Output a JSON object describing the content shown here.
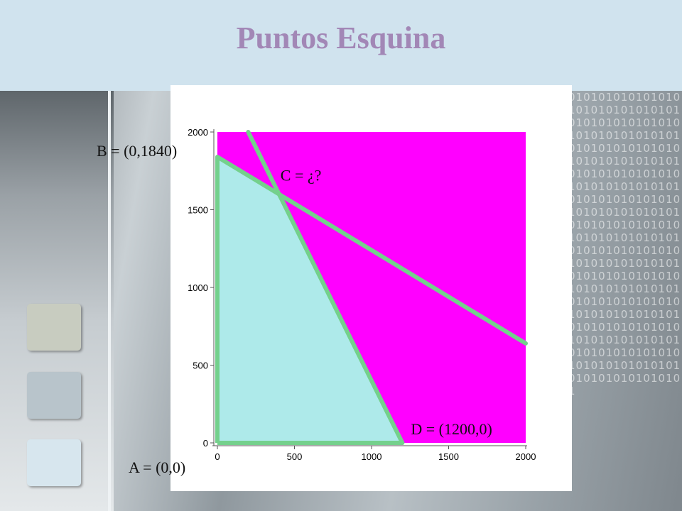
{
  "slide": {
    "title": "Puntos Esquina"
  },
  "colors": {
    "header_bg": "#d0e3ee",
    "title": "#a287b6",
    "infeasible_region": "#ff00ff",
    "feasible_region": "#aeeaea",
    "constraint_line": "#74d08c"
  },
  "chart_data": {
    "type": "area",
    "title": "",
    "xlabel": "",
    "ylabel": "",
    "xlim": [
      0,
      2000
    ],
    "ylim": [
      0,
      2000
    ],
    "x_ticks": [
      0,
      500,
      1000,
      1500,
      2000
    ],
    "y_ticks": [
      0,
      500,
      1000,
      1500,
      2000
    ],
    "grid": false,
    "constraints": [
      {
        "x": [
          0,
          2000
        ],
        "y": [
          1840,
          640
        ]
      },
      {
        "x": [
          200,
          1200
        ],
        "y": [
          2000,
          0
        ]
      }
    ],
    "feasible_region": {
      "x": [
        0,
        0,
        400,
        1200
      ],
      "y": [
        0,
        1840,
        1600,
        0
      ]
    },
    "corner_points": [
      {
        "label": "A = (0,0)",
        "x": 0,
        "y": 0
      },
      {
        "label": "B = (0,1840)",
        "x": 0,
        "y": 1840
      },
      {
        "label": "C = ¿?",
        "x": 400,
        "y": 1600
      },
      {
        "label": "D = (1200,0)",
        "x": 1200,
        "y": 0
      }
    ]
  }
}
